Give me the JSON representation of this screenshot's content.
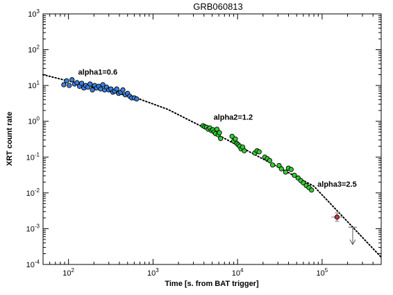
{
  "chart_data": {
    "type": "scatter",
    "title": "GRB060813",
    "xlabel": "Time [s. from BAT trigger]",
    "ylabel": "XRT count rate",
    "x_scale": "log",
    "y_scale": "log",
    "xlim": [
      50,
      500000
    ],
    "ylim": [
      0.0001,
      1000
    ],
    "x_ticks": [
      {
        "base": "10",
        "exp": "2",
        "value": 100
      },
      {
        "base": "10",
        "exp": "3",
        "value": 1000
      },
      {
        "base": "10",
        "exp": "4",
        "value": 10000
      },
      {
        "base": "10",
        "exp": "5",
        "value": 100000
      }
    ],
    "y_ticks": [
      {
        "base": "10",
        "exp": "3",
        "value": 1000
      },
      {
        "base": "10",
        "exp": "2",
        "value": 100
      },
      {
        "base": "10",
        "exp": "1",
        "value": 10
      },
      {
        "base": "10",
        "exp": "0",
        "value": 1
      },
      {
        "base": "10",
        "exp": "-1",
        "value": 0.1
      },
      {
        "base": "10",
        "exp": "-2",
        "value": 0.01
      },
      {
        "base": "10",
        "exp": "-3",
        "value": 0.001
      },
      {
        "base": "10",
        "exp": "-4",
        "value": 0.0001
      }
    ],
    "annotations": [
      {
        "text": "alpha1=0.6",
        "x": 130,
        "y": 20
      },
      {
        "text": "alpha2=1.2",
        "x": 5200,
        "y": 1.1
      },
      {
        "text": "alpha3=2.5",
        "x": 88000,
        "y": 0.015
      }
    ],
    "model": {
      "style": "dotted",
      "points": [
        [
          50,
          20
        ],
        [
          650,
          4.4
        ],
        [
          1500,
          2.15
        ],
        [
          5000,
          0.51
        ],
        [
          80000,
          0.0153
        ],
        [
          500000,
          0.000159
        ]
      ]
    },
    "series": [
      {
        "marker_color": "#3b7fe0",
        "x": [
          88,
          95,
          102,
          110,
          118,
          126,
          135,
          143,
          152,
          160,
          170,
          180,
          192,
          204,
          215,
          228,
          240,
          255,
          268,
          282,
          300,
          318,
          335,
          352,
          372,
          392,
          415,
          440,
          470,
          500,
          530,
          560,
          600,
          640
        ],
        "y": [
          10.5,
          13.5,
          10,
          14.5,
          11,
          12,
          9.5,
          11.5,
          8.5,
          10,
          9,
          11,
          7.5,
          10,
          8.5,
          9.5,
          8,
          10.5,
          7.5,
          9,
          7.5,
          8,
          6.5,
          7,
          8,
          6,
          6.5,
          7.5,
          5.5,
          6,
          5,
          4.5,
          4.5,
          4.2
        ]
      },
      {
        "marker_color": "#33cc33",
        "x": [
          3900,
          4100,
          4300,
          4500,
          4700,
          4900,
          5100,
          5300,
          5500,
          5700,
          5900,
          6100,
          6300,
          8600,
          9000,
          9400,
          9800,
          10200,
          10600,
          11000,
          11500,
          12000,
          16000,
          17000,
          18000,
          21000,
          22500,
          24000,
          26000,
          31000,
          33000,
          37000,
          40000,
          43000,
          47000,
          52000,
          56000,
          60000,
          65000,
          70000,
          75000
        ],
        "y": [
          0.75,
          0.7,
          0.68,
          0.6,
          0.65,
          0.55,
          0.58,
          0.5,
          0.45,
          0.6,
          0.42,
          0.48,
          0.33,
          0.38,
          0.28,
          0.32,
          0.24,
          0.22,
          0.2,
          0.17,
          0.19,
          0.15,
          0.13,
          0.15,
          0.14,
          0.1,
          0.09,
          0.08,
          0.06,
          0.058,
          0.047,
          0.038,
          0.049,
          0.045,
          0.031,
          0.026,
          0.022,
          0.019,
          0.016,
          0.014,
          0.012
        ]
      },
      {
        "marker_color": "#cc3333",
        "x": [
          150000
        ],
        "y": [
          0.0021
        ]
      }
    ],
    "upper_limits": [
      {
        "x": 230000,
        "y": 0.0011
      }
    ],
    "grid": false,
    "legend": "none"
  }
}
